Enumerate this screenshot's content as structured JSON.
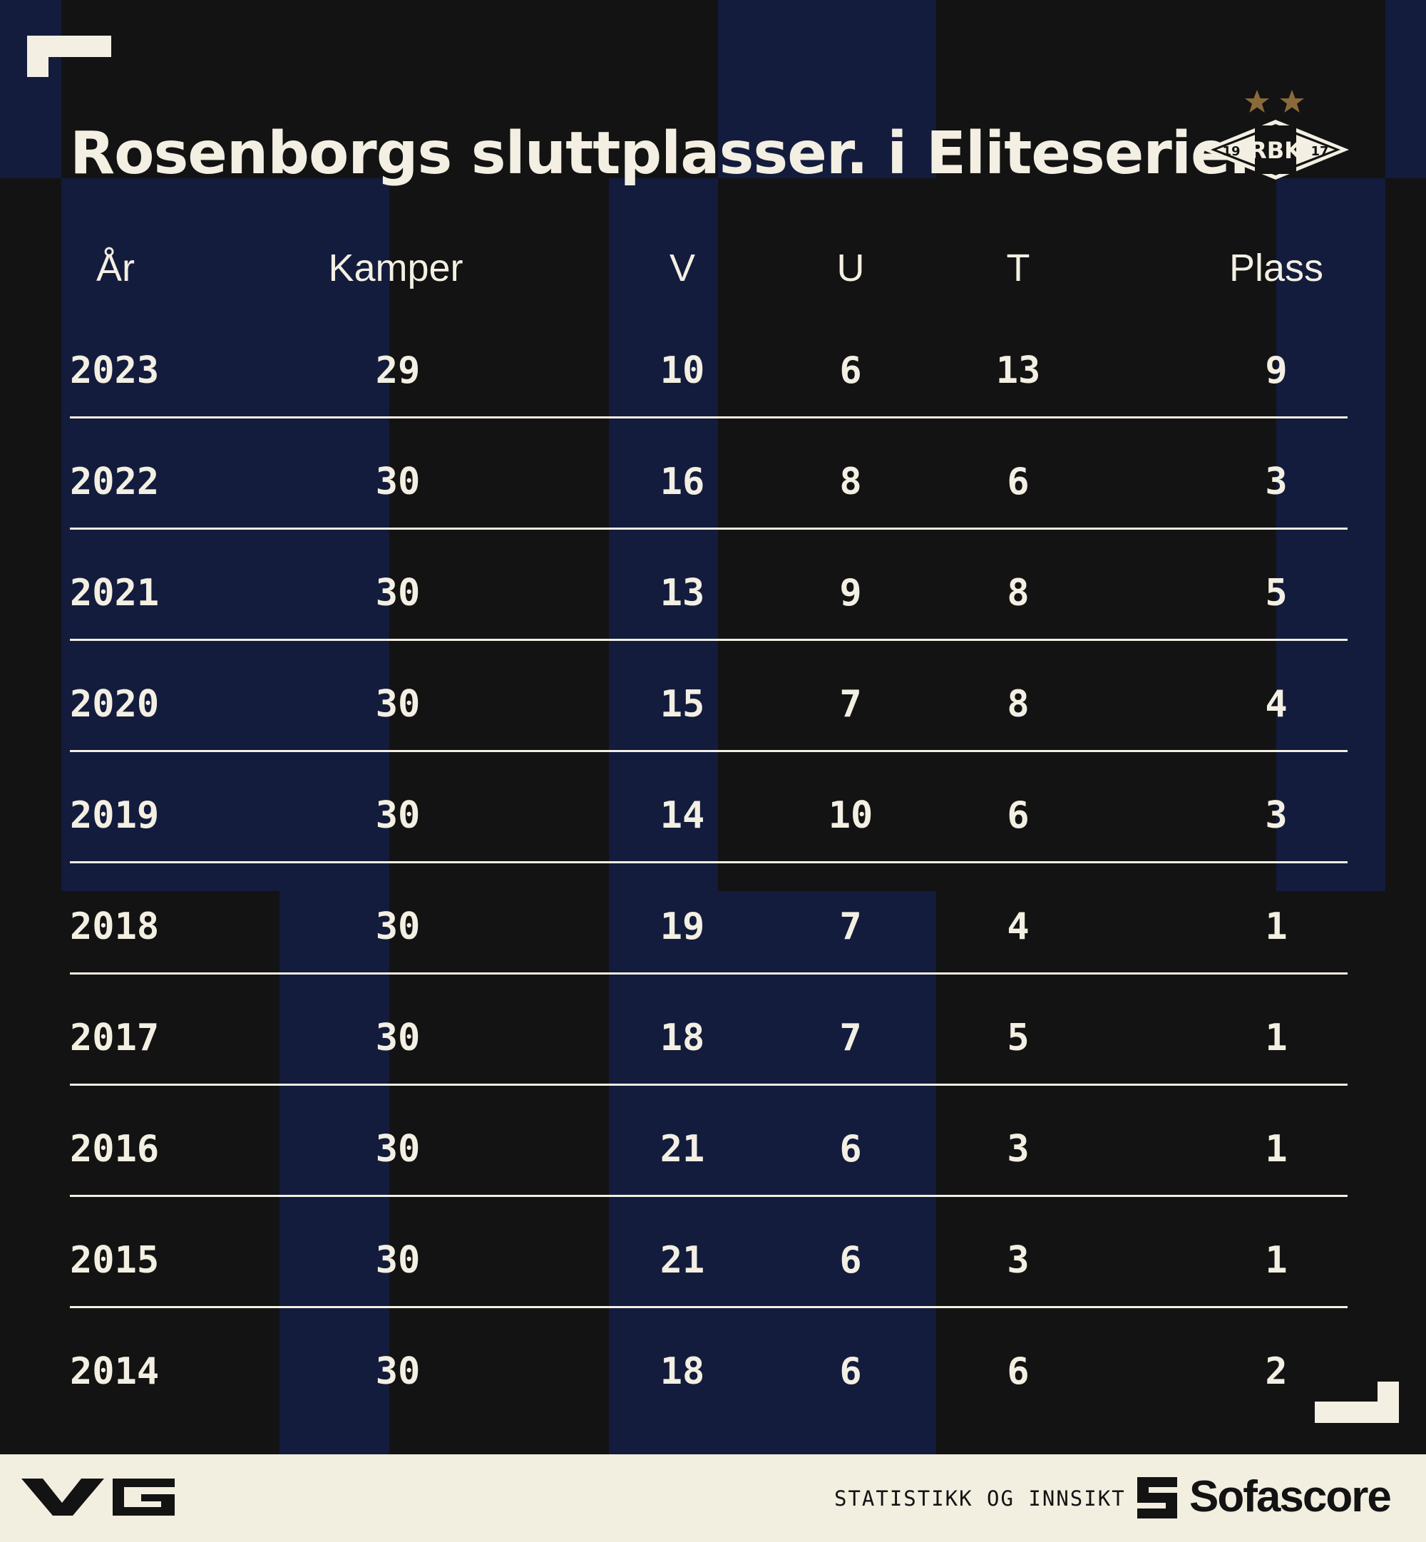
{
  "title": "Rosenborgs sluttplasser. i Eliteserien",
  "logo": {
    "left_number": "19",
    "letters": "RBK",
    "right_number": "17",
    "stars": 2,
    "star_color": "#8a6a3a"
  },
  "colors": {
    "background": "#131313",
    "stripe": "#131c3d",
    "text": "#f3efe2",
    "footer": "#f2eee0"
  },
  "columns": [
    "År",
    "Kamper",
    "V",
    "U",
    "T",
    "Plass"
  ],
  "rows": [
    {
      "year": "2023",
      "kamper": "29",
      "v": "10",
      "u": "6",
      "t": "13",
      "plass": "9"
    },
    {
      "year": "2022",
      "kamper": "30",
      "v": "16",
      "u": "8",
      "t": "6",
      "plass": "3"
    },
    {
      "year": "2021",
      "kamper": "30",
      "v": "13",
      "u": "9",
      "t": "8",
      "plass": "5"
    },
    {
      "year": "2020",
      "kamper": "30",
      "v": "15",
      "u": "7",
      "t": "8",
      "plass": "4"
    },
    {
      "year": "2019",
      "kamper": "30",
      "v": "14",
      "u": "10",
      "t": "6",
      "plass": "3"
    },
    {
      "year": "2018",
      "kamper": "30",
      "v": "19",
      "u": "7",
      "t": "4",
      "plass": "1"
    },
    {
      "year": "2017",
      "kamper": "30",
      "v": "18",
      "u": "7",
      "t": "5",
      "plass": "1"
    },
    {
      "year": "2016",
      "kamper": "30",
      "v": "21",
      "u": "6",
      "t": "3",
      "plass": "1"
    },
    {
      "year": "2015",
      "kamper": "30",
      "v": "21",
      "u": "6",
      "t": "3",
      "plass": "1"
    },
    {
      "year": "2014",
      "kamper": "30",
      "v": "18",
      "u": "6",
      "t": "6",
      "plass": "2"
    }
  ],
  "footer": {
    "left_logo": "VG",
    "tagline": "STATISTIKK OG INNSIKT",
    "brand": "Sofascore"
  }
}
